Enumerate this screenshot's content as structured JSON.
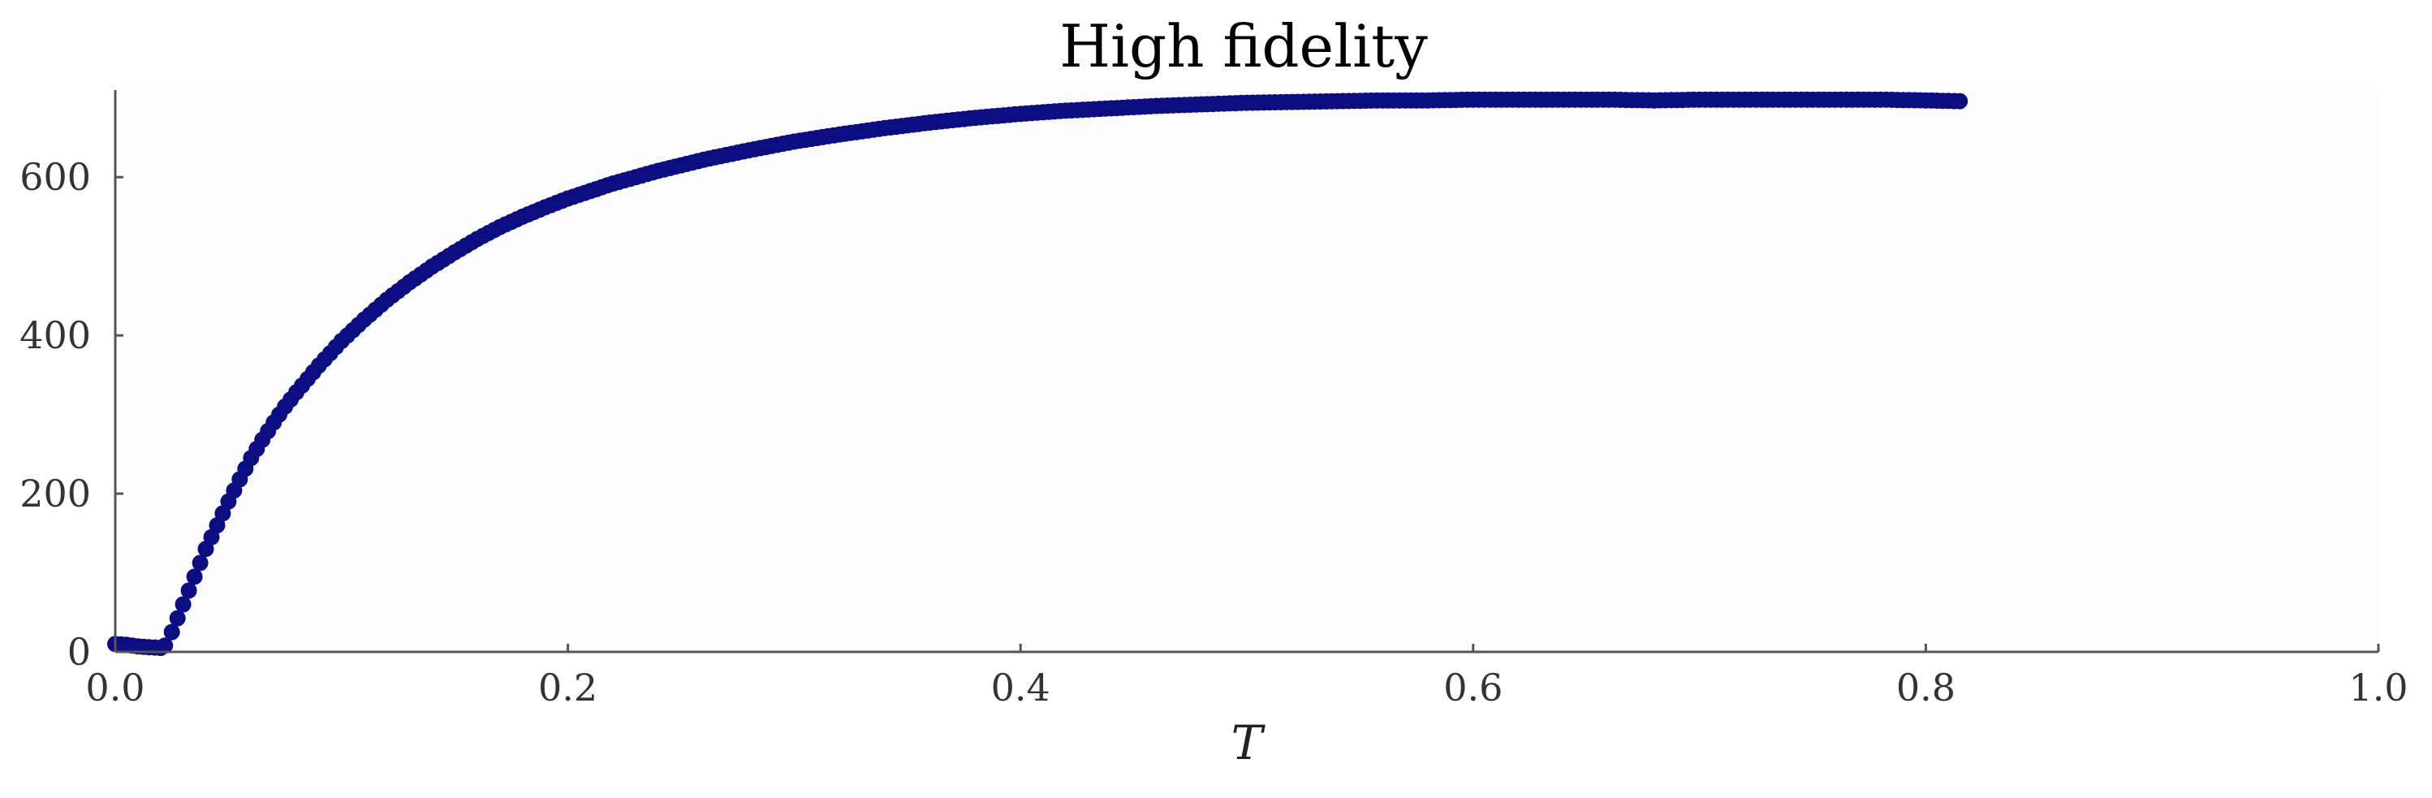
{
  "chart_data": {
    "type": "scatter",
    "title": "High fidelity",
    "xlabel": "T",
    "ylabel": "",
    "xlim": [
      0.0,
      1.0
    ],
    "ylim": [
      0,
      710
    ],
    "xticks": [
      "0.0",
      "0.2",
      "0.4",
      "0.6",
      "0.8",
      "1.0"
    ],
    "xtick_values": [
      0.0,
      0.2,
      0.4,
      0.6,
      0.8,
      1.0
    ],
    "yticks": [
      "0",
      "200",
      "400",
      "600"
    ],
    "ytick_values": [
      0,
      200,
      400,
      600
    ],
    "grid": false,
    "colors": {
      "points": "#0d0d82",
      "plot_background": "#fcfcfd",
      "axis": "#555555"
    },
    "series": [
      {
        "x": [
          0.0,
          0.005,
          0.01,
          0.015,
          0.02,
          0.022,
          0.025,
          0.03,
          0.035,
          0.04,
          0.045,
          0.05,
          0.055,
          0.06,
          0.065,
          0.07,
          0.075,
          0.08,
          0.09,
          0.1,
          0.11,
          0.12,
          0.13,
          0.14,
          0.15,
          0.16,
          0.17,
          0.18,
          0.19,
          0.2,
          0.22,
          0.24,
          0.26,
          0.28,
          0.3,
          0.32,
          0.34,
          0.36,
          0.38,
          0.4,
          0.42,
          0.44,
          0.46,
          0.48,
          0.5,
          0.52,
          0.54,
          0.56,
          0.58,
          0.6,
          0.62,
          0.64,
          0.66,
          0.68,
          0.7,
          0.72,
          0.74,
          0.76,
          0.78,
          0.8,
          0.815
        ],
        "values": [
          10,
          9,
          7,
          6,
          5,
          8,
          25,
          60,
          95,
          130,
          160,
          190,
          218,
          245,
          268,
          290,
          310,
          328,
          362,
          393,
          420,
          445,
          467,
          487,
          505,
          522,
          537,
          550,
          562,
          573,
          592,
          608,
          622,
          634,
          645,
          654,
          662,
          669,
          675,
          680,
          684,
          687,
          690,
          692,
          694,
          695,
          696,
          697,
          697,
          698,
          698,
          698,
          698,
          697,
          698,
          698,
          698,
          698,
          698,
          697,
          696
        ]
      }
    ]
  }
}
